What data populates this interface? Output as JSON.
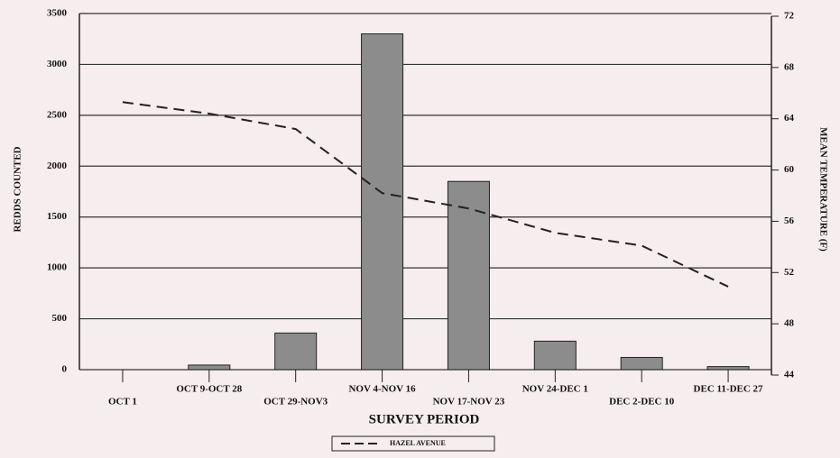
{
  "chart_data": {
    "type": "bar-line",
    "x_label": "SURVEY PERIOD",
    "y_label": "REDDS COUNTED",
    "y2_label": "MEAN TEMPERATURE (F)",
    "categories": [
      "OCT 1",
      "OCT 9-OCT 28",
      "OCT 29-NOV3",
      "NOV 4-NOV 16",
      "NOV 17-NOV 23",
      "NOV 24-DEC 1",
      "DEC 2-DEC 10",
      "DEC 11-DEC 27"
    ],
    "series": [
      {
        "name": null,
        "color": "#8c8c8c",
        "values": [
          0,
          45,
          360,
          3300,
          1850,
          280,
          120,
          30
        ]
      },
      {
        "name": "HAZEL AVENUE",
        "color": "#222222",
        "axis": "y2",
        "values": [
          65.3,
          64.4,
          63.2,
          58.2,
          57.0,
          55.1,
          54.1,
          50.9
        ]
      }
    ],
    "ylim": [
      0,
      3500
    ],
    "yticks": [
      0,
      500,
      1000,
      1500,
      2000,
      2500,
      3000,
      3500
    ],
    "y2lim": [
      44,
      72
    ],
    "y2ticks": [
      44,
      48,
      52,
      56,
      60,
      64,
      68,
      72
    ],
    "grid": true
  }
}
